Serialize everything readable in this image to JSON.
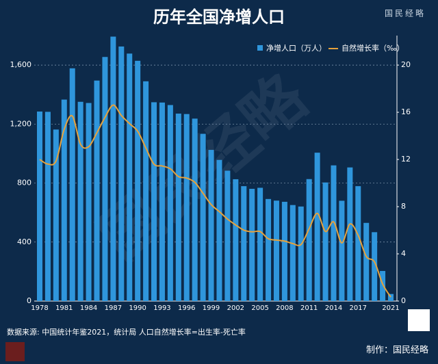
{
  "chart_data": {
    "type": "bar",
    "title": "历年全国净增人口",
    "logo": "国民经略",
    "watermark": "国民经略",
    "source": "数据来源: 中国统计年鉴2021，统计局  人口自然增长率=出生率-死亡率",
    "credit": "制作：国民经略",
    "categories": [
      "1978",
      null,
      null,
      "1981",
      null,
      null,
      "1984",
      null,
      null,
      "1987",
      null,
      null,
      "1990",
      null,
      null,
      "1993",
      null,
      null,
      "1996",
      null,
      null,
      "1999",
      null,
      null,
      "2002",
      null,
      null,
      "2005",
      null,
      null,
      "2008",
      null,
      null,
      "2011",
      null,
      null,
      "2014",
      null,
      null,
      "2017",
      null,
      null,
      null,
      "2021"
    ],
    "series": [
      {
        "name": "净增人口（万人）",
        "color": "#2f96dc",
        "type": "bar",
        "values": [
          1285,
          1283,
          1163,
          1366,
          1578,
          1351,
          1343,
          1495,
          1655,
          1793,
          1726,
          1678,
          1629,
          1490,
          1348,
          1346,
          1329,
          1271,
          1268,
          1237,
          1134,
          1025,
          957,
          884,
          826,
          779,
          761,
          768,
          692,
          681,
          673,
          651,
          641,
          827,
          1006,
          804,
          920,
          680,
          906,
          779,
          530,
          467,
          204,
          48
        ]
      },
      {
        "name": "自然增长率（‰）",
        "color": "#e6a23c",
        "type": "line",
        "axis": "y2",
        "values": [
          12.0,
          11.61,
          11.87,
          14.55,
          15.68,
          13.29,
          13.08,
          14.26,
          15.57,
          16.61,
          15.73,
          15.04,
          14.39,
          12.98,
          11.6,
          11.45,
          11.21,
          10.55,
          10.42,
          10.06,
          9.14,
          8.18,
          7.58,
          6.95,
          6.45,
          6.01,
          5.87,
          5.89,
          5.28,
          5.17,
          5.08,
          4.87,
          4.79,
          6.13,
          7.43,
          5.9,
          6.71,
          4.93,
          6.53,
          5.58,
          3.78,
          3.32,
          1.45,
          0.34
        ]
      }
    ],
    "ylim": [
      0,
      1800
    ],
    "yticks": [
      0,
      {
        "value": 400,
        "label": "400"
      },
      {
        "value": 800,
        "label": "800"
      },
      {
        "value": 1200,
        "label": "1,200"
      },
      {
        "value": 1600,
        "label": "1,600"
      }
    ],
    "y2lim": [
      0,
      22.5
    ],
    "y2ticks": [
      0,
      4,
      8,
      12,
      16,
      20
    ],
    "grid": true
  }
}
